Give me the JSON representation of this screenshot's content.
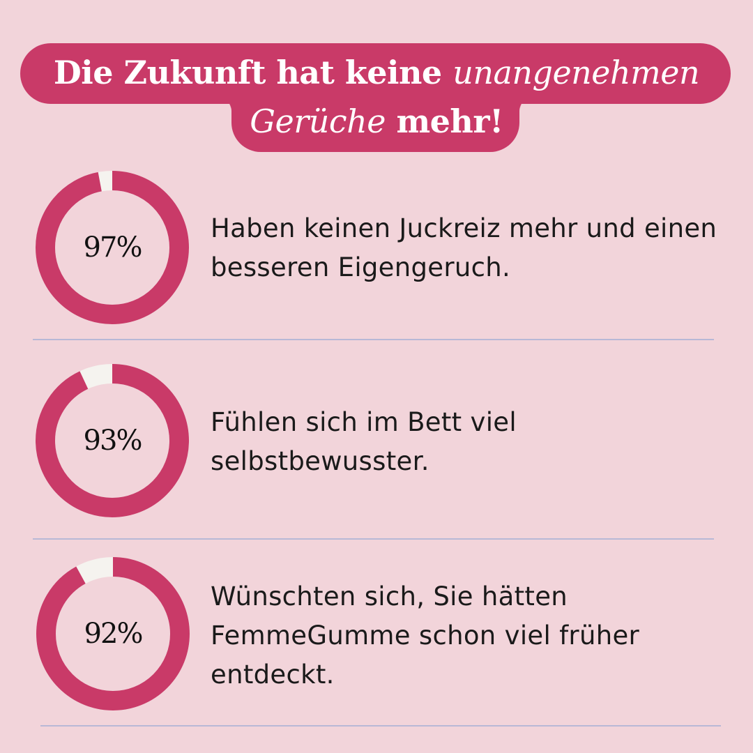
{
  "title": {
    "line1_regular": "Die Zukunft hat keine ",
    "line1_italic": "unangenehmen",
    "line2_italic": "Gerüche",
    "line2_regular": " mehr!"
  },
  "colors": {
    "background": "#f2d4da",
    "accent": "#c93a68",
    "ring_remainder": "#f5f3ef",
    "divider": "#b8b8d6",
    "text": "#1a1a1a"
  },
  "chart_data": [
    {
      "type": "pie",
      "label": "97%",
      "value": 97,
      "remainder": 3,
      "description": "Haben keinen Juckreiz mehr und einen besseren Eigengeruch."
    },
    {
      "type": "pie",
      "label": "93%",
      "value": 93,
      "remainder": 7,
      "description": "Fühlen sich im Bett viel selbstbewusster."
    },
    {
      "type": "pie",
      "label": "92%",
      "value": 92,
      "remainder": 8,
      "description": "Wünschten sich, Sie hätten FemmeGumme schon viel früher entdeckt."
    }
  ]
}
